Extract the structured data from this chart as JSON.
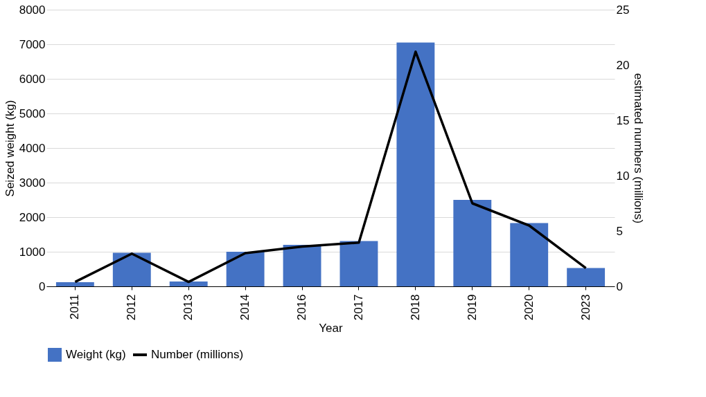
{
  "chart_data": {
    "type": "bar",
    "xlabel": "Year",
    "ylabel": "Seized weight (kg)",
    "y2label": "estimated numbers (millions)",
    "categories": [
      "2011",
      "2012",
      "2013",
      "2014",
      "2016",
      "2017",
      "2018",
      "2019",
      "2020",
      "2023"
    ],
    "series": [
      {
        "name": "Weight (kg)",
        "color": "#4472c4",
        "values": [
          120,
          970,
          140,
          1000,
          1200,
          1310,
          7050,
          2500,
          1830,
          530
        ]
      },
      {
        "name": "Number (millions)",
        "type": "line",
        "axis": "y2",
        "color": "#000000",
        "values": [
          0.4,
          2.95,
          0.4,
          3.0,
          3.6,
          3.95,
          21.2,
          7.5,
          5.5,
          1.65
        ]
      }
    ],
    "ylim": [
      0,
      8000
    ],
    "yticks": [
      0,
      1000,
      2000,
      3000,
      4000,
      5000,
      6000,
      7000,
      8000
    ],
    "y2lim": [
      0,
      25
    ],
    "y2ticks": [
      0,
      5,
      10,
      15,
      20,
      25
    ],
    "grid": "y",
    "legend": "bottom",
    "marker": "none",
    "line_style": "solid"
  }
}
